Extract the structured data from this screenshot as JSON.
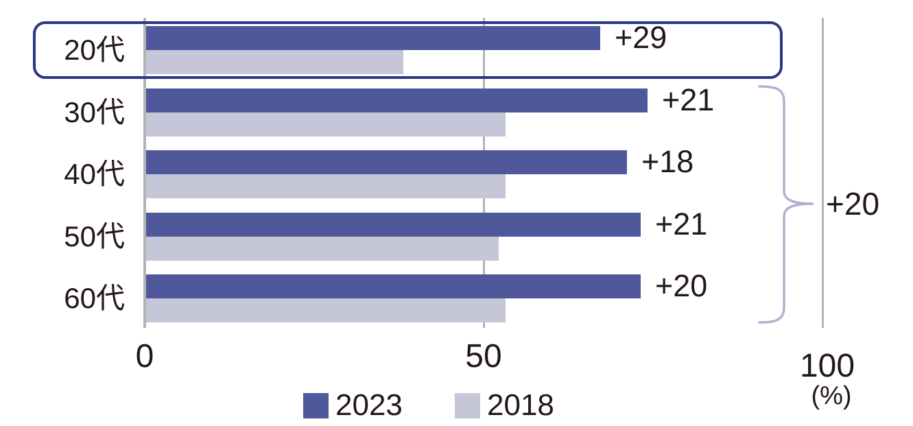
{
  "chart_data": {
    "type": "bar",
    "orientation": "horizontal",
    "categories": [
      "20代",
      "30代",
      "40代",
      "50代",
      "60代"
    ],
    "series": [
      {
        "name": "2023",
        "color": "#4F589A",
        "values": [
          67,
          74,
          71,
          73,
          73
        ]
      },
      {
        "name": "2018",
        "color": "#C5C7D9",
        "values": [
          38,
          53,
          53,
          52,
          53
        ]
      }
    ],
    "bar_diff_labels": [
      "+29",
      "+21",
      "+18",
      "+21",
      "+20"
    ],
    "group_annotation": {
      "label": "+20",
      "applies_to": [
        "30代",
        "40代",
        "50代",
        "60代"
      ]
    },
    "highlighted_category": "20代",
    "xlim": [
      0,
      100
    ],
    "x_ticks": [
      "0",
      "50",
      "100"
    ],
    "x_unit_label": "(%)",
    "grid": true,
    "legend": {
      "position": "bottom",
      "entries": [
        "2023",
        "2018"
      ]
    }
  },
  "colors": {
    "bar_2023": "#4F589A",
    "bar_2018": "#C5C7D9",
    "highlight_border": "#2A3789",
    "brace": "#AEB2CF",
    "gridline": "#B3B3B3",
    "text": "#231815"
  }
}
